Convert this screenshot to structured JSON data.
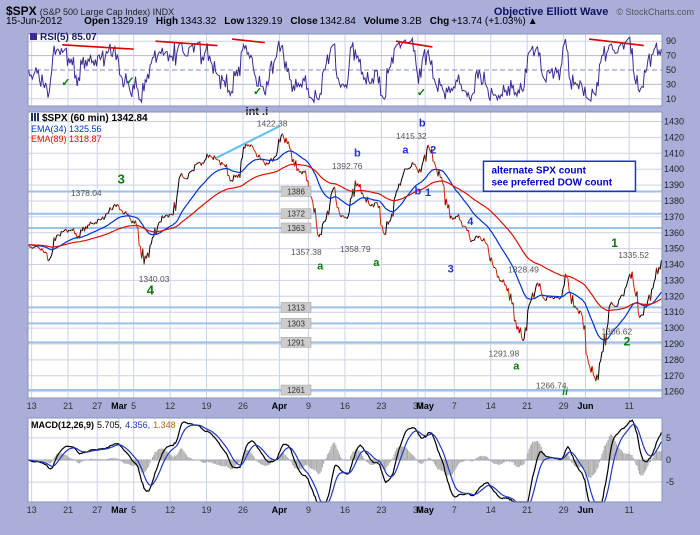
{
  "colors": {
    "bg": "#a9afd9",
    "plot_bg": "#ffffff",
    "grid": "#ccd2e6",
    "panel_border": "#8a93bd",
    "rsi_line": "#3a2a96",
    "rsi_mid": "#7d88cc",
    "price_up": "#000000",
    "price_down": "#cc2200",
    "ema34": "#0033cc",
    "ema89": "#dd1100",
    "pivot_line": "#9cc2ec",
    "pivot_label_bg": "#cccccc",
    "pivot_label_border": "#999999",
    "macd_line": "#000000",
    "macd_signal": "#2136c4",
    "macd_hist": "#a9a9a9",
    "trend_red": "#dd0000",
    "check_green": "#0a7a0a",
    "trend_cyan": "#62c0f0",
    "annot_gray": "#555555",
    "annot_green": "#0a7a0a",
    "annot_blue": "#2233cc",
    "annot_dark": "#222222",
    "note_blue": "#0000cc"
  },
  "header": {
    "symbol": "$SPX",
    "symbol_desc": "(S&P 500 Large Cap Index) INDX",
    "brand": "Objective Elliott Wave",
    "copyright": "© StockCharts.com",
    "date": "15-Jun-2012",
    "quote": {
      "open_label": "Open",
      "open": "1329.19",
      "high_label": "High",
      "high": "1343.32",
      "low_label": "Low",
      "low": "1329.19",
      "close_label": "Close",
      "close": "1342.84",
      "volume_label": "Volume",
      "volume": "3.2B",
      "chg_label": "Chg",
      "chg": "+13.74 (+1.03%)",
      "up_arrow": "▲"
    }
  },
  "rsi": {
    "label": "RSI(5) 85.07",
    "yticks": [
      90,
      70,
      50,
      30,
      10
    ],
    "check_glyph": "✓",
    "trendlines": [
      {
        "i1": 4.2,
        "v1": 85,
        "i2": 14,
        "v2": 79
      },
      {
        "i1": 17,
        "v1": 90,
        "i2": 25.5,
        "v2": 84
      },
      {
        "i1": 27.5,
        "v1": 93,
        "i2": 32,
        "v2": 88
      },
      {
        "i1": 50,
        "v1": 90,
        "i2": 55,
        "v2": 82
      },
      {
        "i1": 76.5,
        "v1": 93,
        "i2": 84,
        "v2": 84
      }
    ],
    "checks": [
      {
        "i": 4.7,
        "v": 28
      },
      {
        "i": 13.5,
        "v": 30
      },
      {
        "i": 31,
        "v": 15
      },
      {
        "i": 53.5,
        "v": 14
      }
    ]
  },
  "main": {
    "label": "$SPX (60 min) 1342.84",
    "ema34_label": "EMA(34) 1325.56",
    "ema89_label": "EMA(89) 1318.87",
    "note_line1": "alternate SPX count",
    "note_line2": "see preferred DOW count",
    "trendlines": [
      {
        "i1": 25.3,
        "v1": 1407,
        "i2": 34,
        "v2": 1427
      }
    ],
    "annotations": [
      {
        "t": "int .i",
        "i": 30.9,
        "v": 1434,
        "c": "dark",
        "fs": 11,
        "b": true
      },
      {
        "t": "1422.38",
        "i": 33,
        "v": 1427,
        "c": "gray"
      },
      {
        "t": "3",
        "i": 12.3,
        "v": 1391,
        "c": "green",
        "fs": 13,
        "b": true
      },
      {
        "t": "1378.04",
        "i": 7.5,
        "v": 1383,
        "c": "gray"
      },
      {
        "t": "1340.03",
        "i": 16.8,
        "v": 1329,
        "c": "gray"
      },
      {
        "t": "4",
        "i": 16.3,
        "v": 1321,
        "c": "green",
        "fs": 13,
        "b": true
      },
      {
        "t": "1357.38",
        "i": 37.7,
        "v": 1346,
        "c": "gray"
      },
      {
        "t": "a",
        "i": 39.6,
        "v": 1337,
        "c": "green",
        "fs": 11,
        "b": true
      },
      {
        "t": "b",
        "i": 44.7,
        "v": 1408,
        "c": "blue",
        "fs": 11,
        "b": true
      },
      {
        "t": "1392.76",
        "i": 43.3,
        "v": 1400,
        "c": "gray"
      },
      {
        "t": "1358.79",
        "i": 44.4,
        "v": 1348,
        "c": "gray"
      },
      {
        "t": "a",
        "i": 47.3,
        "v": 1339,
        "c": "green",
        "fs": 11,
        "b": true
      },
      {
        "t": "b",
        "i": 53.6,
        "v": 1427,
        "c": "blue",
        "fs": 11,
        "b": true
      },
      {
        "t": "1415.32",
        "i": 52.1,
        "v": 1419,
        "c": "gray"
      },
      {
        "t": "a",
        "i": 51.3,
        "v": 1410,
        "c": "blue",
        "fs": 11,
        "b": true
      },
      {
        "t": "2",
        "i": 55.1,
        "v": 1410,
        "c": "blue",
        "fs": 11,
        "b": true
      },
      {
        "t": "b",
        "i": 53.0,
        "v": 1384,
        "c": "blue",
        "fs": 11,
        "b": true
      },
      {
        "t": "1",
        "i": 54.4,
        "v": 1383,
        "c": "blue",
        "fs": 11,
        "b": true
      },
      {
        "t": "3",
        "i": 57.5,
        "v": 1335,
        "c": "blue",
        "fs": 11,
        "b": true
      },
      {
        "t": "4",
        "i": 60.2,
        "v": 1365,
        "c": "blue",
        "fs": 11,
        "b": true
      },
      {
        "t": "1328.49",
        "i": 67.5,
        "v": 1335,
        "c": "gray"
      },
      {
        "t": "1291.98",
        "i": 64.8,
        "v": 1282,
        "c": "gray"
      },
      {
        "t": "a",
        "i": 66.5,
        "v": 1274,
        "c": "green",
        "fs": 11,
        "b": true
      },
      {
        "t": "1266.74",
        "i": 71.3,
        "v": 1262,
        "c": "gray"
      },
      {
        "t": "ii",
        "i": 73.2,
        "v": 1258,
        "c": "green",
        "fs": 10,
        "b": true,
        "it": true
      },
      {
        "t": "1",
        "i": 80,
        "v": 1351,
        "c": "green",
        "fs": 12,
        "b": true
      },
      {
        "t": "1335.52",
        "i": 82.6,
        "v": 1344,
        "c": "gray"
      },
      {
        "t": "1306.62",
        "i": 80.3,
        "v": 1296,
        "c": "gray"
      },
      {
        "t": "2",
        "i": 81.7,
        "v": 1289,
        "c": "green",
        "fs": 12,
        "b": true
      }
    ]
  },
  "macd": {
    "name": "MACD(12,26,9)",
    "v1": "5.705,",
    "v2": "4.356,",
    "v3": "1.348",
    "yticks": [
      5,
      0,
      -5
    ]
  },
  "xaxis": {
    "ticks": [
      {
        "i": 0,
        "l": "13"
      },
      {
        "i": 5,
        "l": "21"
      },
      {
        "i": 9,
        "l": "27"
      },
      {
        "i": 12,
        "l": "Mar",
        "b": true
      },
      {
        "i": 14,
        "l": "5"
      },
      {
        "i": 19,
        "l": "12"
      },
      {
        "i": 24,
        "l": "19"
      },
      {
        "i": 29,
        "l": "26"
      },
      {
        "i": 34,
        "l": "Apr",
        "b": true
      },
      {
        "i": 38,
        "l": "9"
      },
      {
        "i": 43,
        "l": "16"
      },
      {
        "i": 48,
        "l": "23"
      },
      {
        "i": 53,
        "l": "30"
      },
      {
        "i": 54,
        "l": "May",
        "b": true
      },
      {
        "i": 58,
        "l": "7"
      },
      {
        "i": 63,
        "l": "14"
      },
      {
        "i": 68,
        "l": "21"
      },
      {
        "i": 73,
        "l": "29"
      },
      {
        "i": 76,
        "l": "Jun",
        "b": true
      },
      {
        "i": 82,
        "l": "11"
      }
    ]
  },
  "chart_data": [
    {
      "type": "line",
      "panel": "rsi",
      "title": "RSI(5)",
      "last": 85.07,
      "ylim": [
        0,
        100
      ],
      "levels": [
        90,
        70,
        50,
        30,
        10
      ],
      "overbought": 70,
      "oversold": 30,
      "period": 5
    },
    {
      "type": "bar",
      "panel": "price",
      "title": "$SPX 60 min with EMA(34) and EMA(89)",
      "ylim": [
        1260,
        1430
      ],
      "yticks": [
        1430,
        1420,
        1410,
        1400,
        1390,
        1380,
        1370,
        1360,
        1350,
        1340,
        1330,
        1320,
        1310,
        1300,
        1290,
        1280,
        1270,
        1260
      ],
      "pivots": [
        1386,
        1372,
        1363,
        1313,
        1303,
        1291,
        1261
      ],
      "ema": [
        {
          "period": 34,
          "last": 1325.56
        },
        {
          "period": 89,
          "last": 1318.87
        }
      ],
      "dates": [
        "2/13",
        "2/14",
        "2/15",
        "2/16",
        "2/17",
        "2/21",
        "2/22",
        "2/23",
        "2/24",
        "2/27",
        "2/28",
        "2/29",
        "3/1",
        "3/2",
        "3/5",
        "3/6",
        "3/7",
        "3/8",
        "3/9",
        "3/12",
        "3/13",
        "3/14",
        "3/15",
        "3/16",
        "3/19",
        "3/20",
        "3/21",
        "3/22",
        "3/23",
        "3/26",
        "3/27",
        "3/28",
        "3/29",
        "3/30",
        "4/2",
        "4/3",
        "4/4",
        "4/5",
        "4/9",
        "4/10",
        "4/11",
        "4/12",
        "4/13",
        "4/16",
        "4/17",
        "4/18",
        "4/19",
        "4/20",
        "4/23",
        "4/24",
        "4/25",
        "4/26",
        "4/27",
        "4/30",
        "5/1",
        "5/2",
        "5/3",
        "5/4",
        "5/7",
        "5/8",
        "5/9",
        "5/10",
        "5/11",
        "5/14",
        "5/15",
        "5/16",
        "5/17",
        "5/18",
        "5/21",
        "5/22",
        "5/23",
        "5/24",
        "5/25",
        "5/29",
        "5/30",
        "5/31",
        "6/1",
        "6/4",
        "6/5",
        "6/6",
        "6/7",
        "6/8",
        "6/11",
        "6/12",
        "6/13",
        "6/14",
        "6/15"
      ],
      "close": [
        1351,
        1350,
        1343,
        1358,
        1361,
        1362,
        1358,
        1364,
        1366,
        1368,
        1372,
        1378,
        1374,
        1370,
        1364,
        1340,
        1353,
        1366,
        1371,
        1371,
        1396,
        1394,
        1403,
        1404,
        1409,
        1406,
        1403,
        1393,
        1397,
        1417,
        1413,
        1406,
        1403,
        1408,
        1422.4,
        1413,
        1399,
        1398,
        1382,
        1357.4,
        1369,
        1388,
        1370,
        1370,
        1392.8,
        1385,
        1377,
        1379,
        1358.8,
        1372,
        1391,
        1400,
        1403,
        1398,
        1415.3,
        1402,
        1391,
        1369,
        1370,
        1364,
        1355,
        1358,
        1353,
        1338,
        1330,
        1325,
        1305,
        1292,
        1316,
        1328.5,
        1318,
        1320,
        1318,
        1332,
        1313,
        1310,
        1278,
        1266.7,
        1285,
        1315,
        1314,
        1325,
        1335.5,
        1306.6,
        1314,
        1329,
        1342.84
      ],
      "swings": [
        {
          "date": "2/29",
          "price": 1378.04
        },
        {
          "date": "3/6",
          "price": 1340.03
        },
        {
          "date": "4/2",
          "price": 1422.38
        },
        {
          "date": "4/10",
          "price": 1357.38
        },
        {
          "date": "4/17",
          "price": 1392.76
        },
        {
          "date": "4/23",
          "price": 1358.79
        },
        {
          "date": "5/1",
          "price": 1415.32
        },
        {
          "date": "5/18",
          "price": 1291.98
        },
        {
          "date": "5/22",
          "price": 1328.49
        },
        {
          "date": "6/4",
          "price": 1266.74
        },
        {
          "date": "6/11",
          "price": 1335.52
        },
        {
          "date": "6/12",
          "price": 1306.62
        }
      ]
    },
    {
      "type": "line",
      "panel": "macd",
      "title": "MACD(12,26,9)",
      "last": {
        "macd": 5.705,
        "signal": 4.356,
        "hist": 1.348
      },
      "ylim": [
        -9.5,
        9.5
      ],
      "yticks": [
        5,
        0,
        -5
      ]
    }
  ]
}
